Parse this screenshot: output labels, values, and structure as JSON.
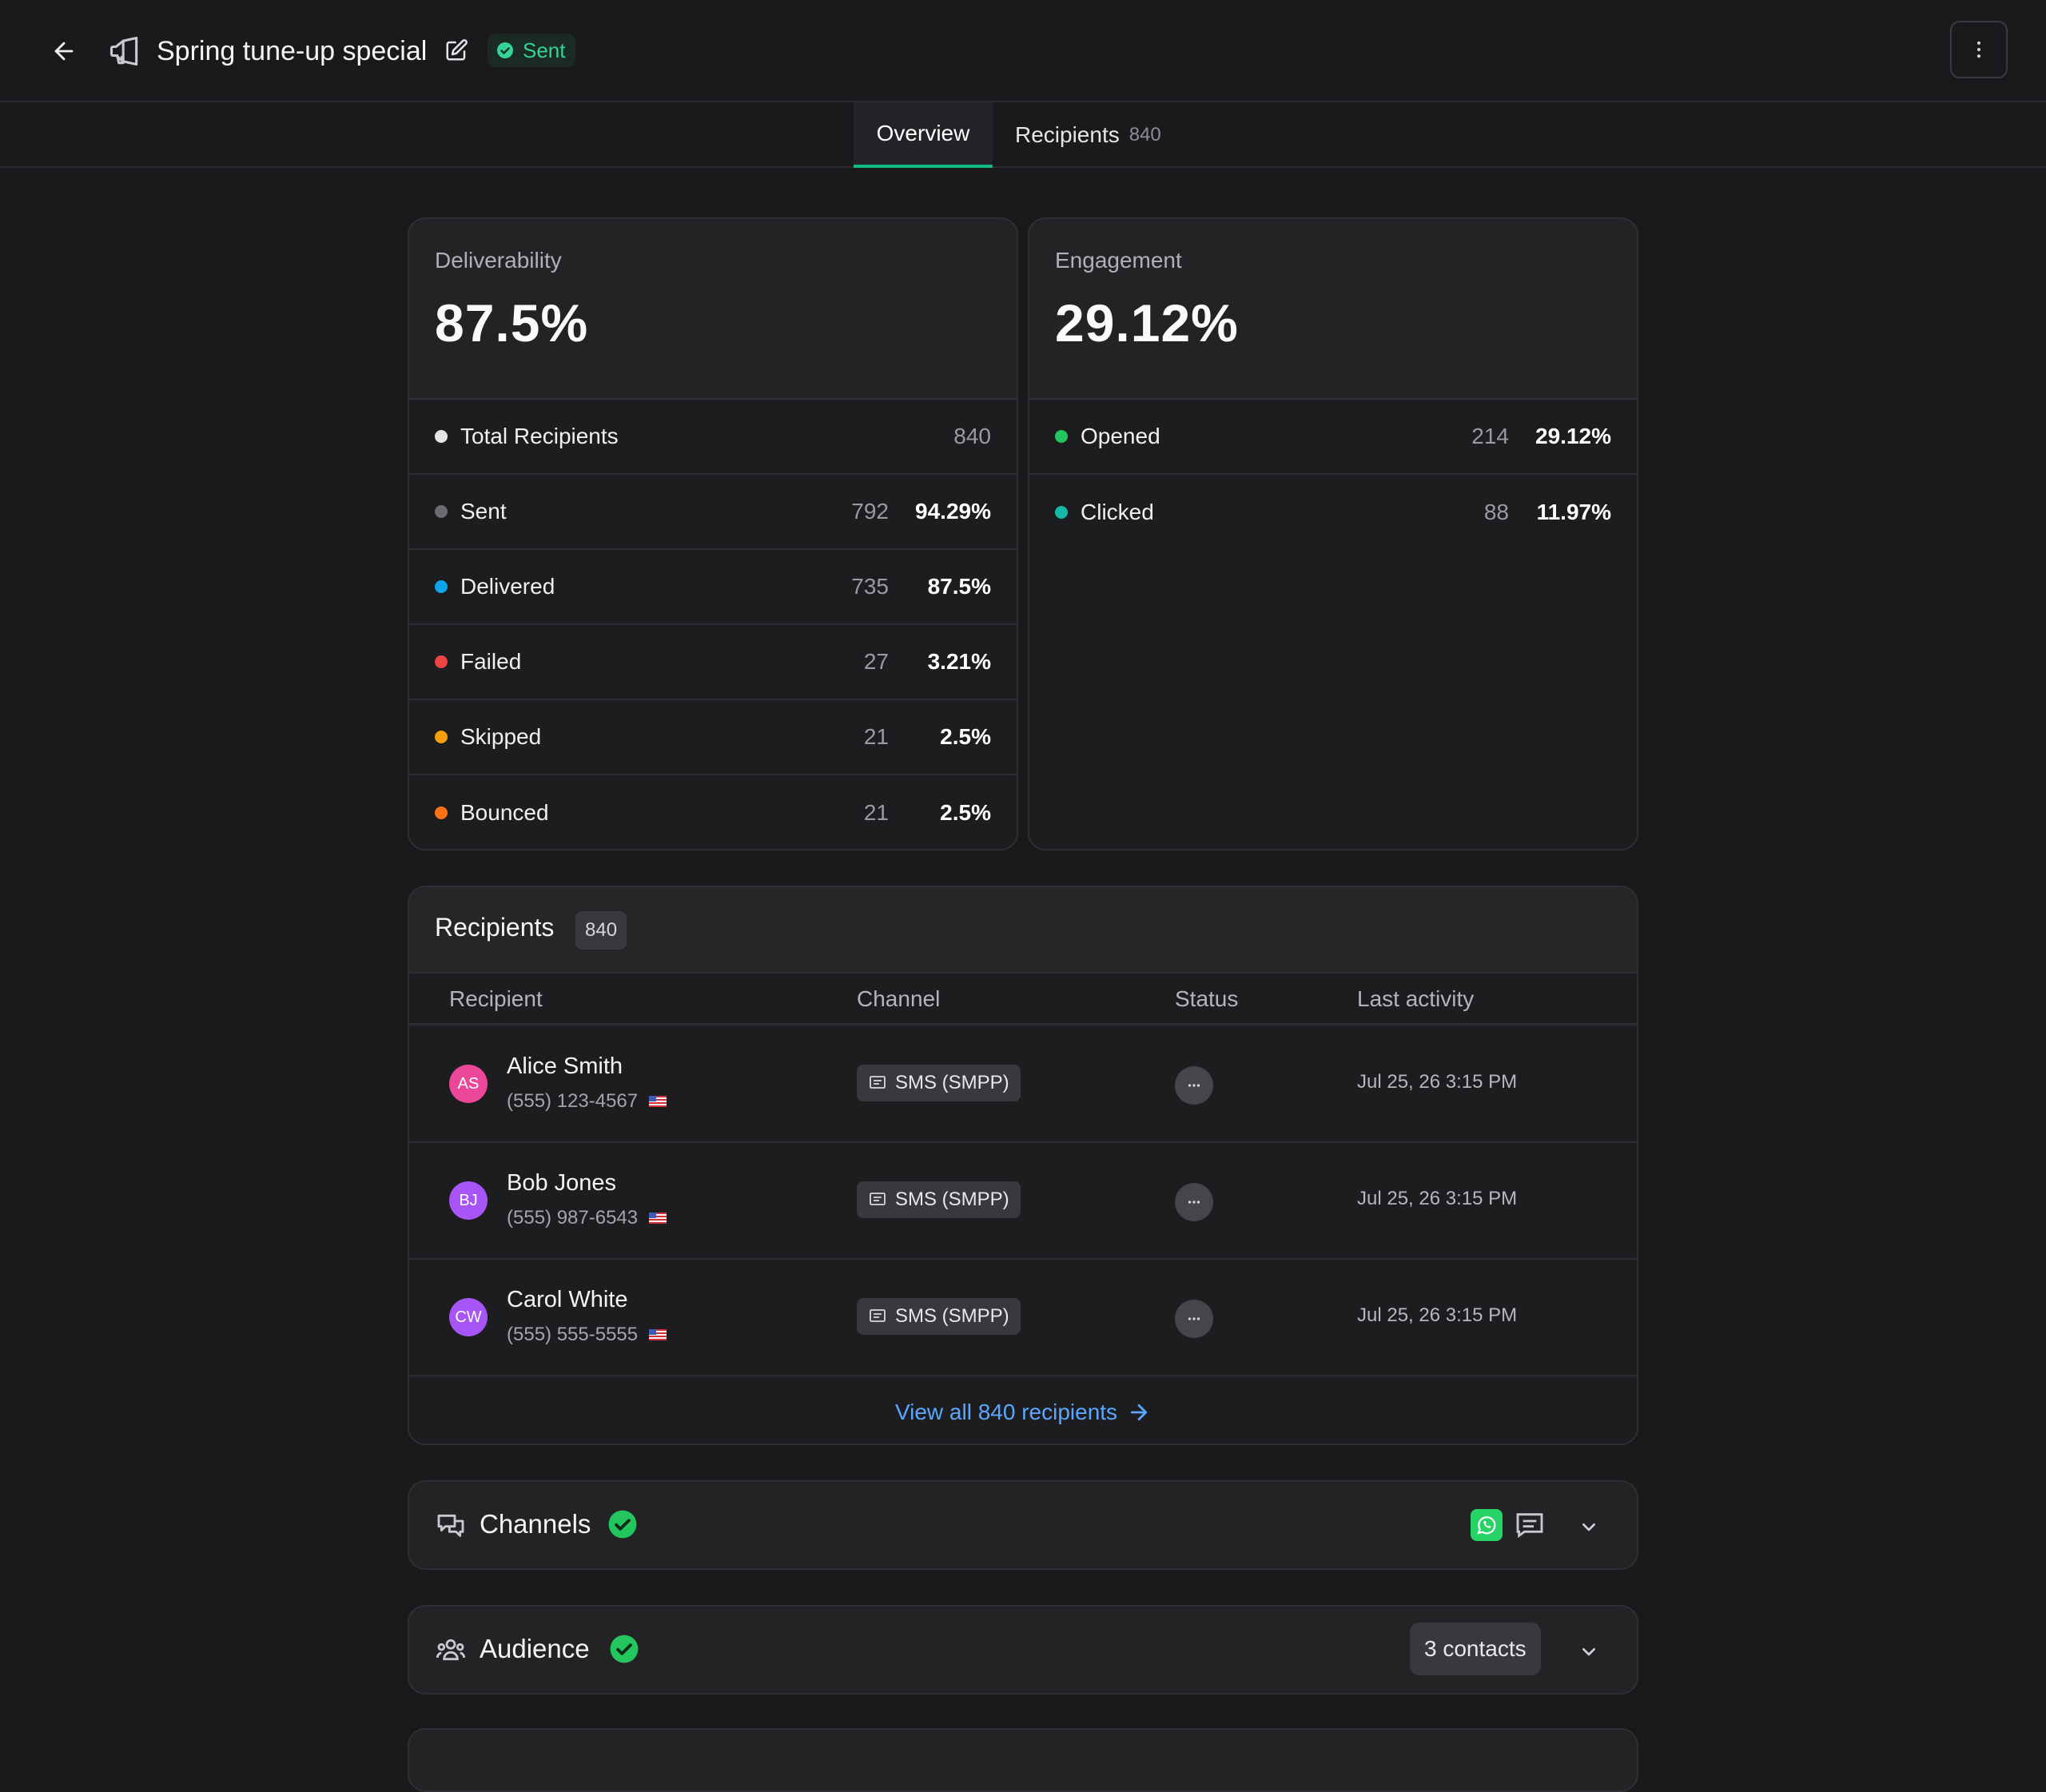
{
  "header": {
    "title": "Spring tune-up special",
    "status": "Sent"
  },
  "tabs": [
    {
      "label": "Overview",
      "active": true
    },
    {
      "label": "Recipients",
      "count": "840",
      "active": false
    }
  ],
  "deliverability": {
    "label": "Deliverability",
    "value": "87.5%",
    "rows": [
      {
        "label": "Total Recipients",
        "count": "840",
        "pct": "",
        "color": "#e5e5e5"
      },
      {
        "label": "Sent",
        "count": "792",
        "pct": "94.29%",
        "color": "#6b6b72"
      },
      {
        "label": "Delivered",
        "count": "735",
        "pct": "87.5%",
        "color": "#0ea5e9"
      },
      {
        "label": "Failed",
        "count": "27",
        "pct": "3.21%",
        "color": "#ef4444"
      },
      {
        "label": "Skipped",
        "count": "21",
        "pct": "2.5%",
        "color": "#f59e0b"
      },
      {
        "label": "Bounced",
        "count": "21",
        "pct": "2.5%",
        "color": "#f97316"
      }
    ]
  },
  "engagement": {
    "label": "Engagement",
    "value": "29.12%",
    "rows": [
      {
        "label": "Opened",
        "count": "214",
        "pct": "29.12%",
        "color": "#22c55e"
      },
      {
        "label": "Clicked",
        "count": "88",
        "pct": "11.97%",
        "color": "#14b8a6"
      }
    ]
  },
  "recipients": {
    "title": "Recipients",
    "count": "840",
    "columns": [
      "Recipient",
      "Channel",
      "Status",
      "Last activity"
    ],
    "rows": [
      {
        "initials": "AS",
        "avatar_color": "#ec4899",
        "name": "Alice Smith",
        "phone": "(555) 123-4567",
        "channel": "SMS (SMPP)",
        "activity": "Jul 25, 26 3:15 PM"
      },
      {
        "initials": "BJ",
        "avatar_color": "#a855f7",
        "name": "Bob Jones",
        "phone": "(555) 987-6543",
        "channel": "SMS (SMPP)",
        "activity": "Jul 25, 26 3:15 PM"
      },
      {
        "initials": "CW",
        "avatar_color": "#a855f7",
        "name": "Carol White",
        "phone": "(555) 555-5555",
        "channel": "SMS (SMPP)",
        "activity": "Jul 25, 26 3:15 PM"
      }
    ],
    "view_all": "View all 840 recipients"
  },
  "sections": {
    "channels": {
      "title": "Channels"
    },
    "audience": {
      "title": "Audience",
      "contacts": "3 contacts"
    }
  },
  "colors": {
    "accent": "#10b981",
    "link": "#5aa7ff",
    "success": "#22c55e"
  }
}
